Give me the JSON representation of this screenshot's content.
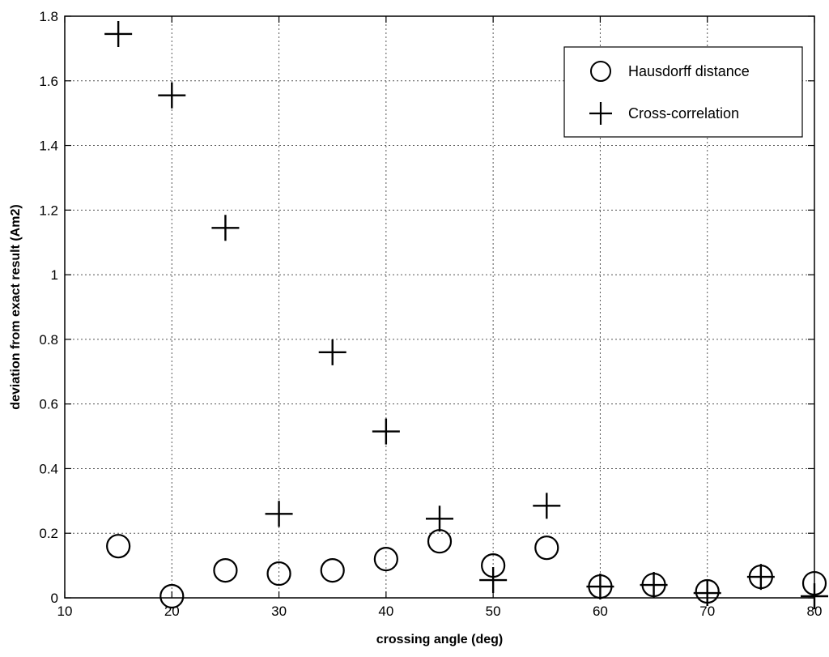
{
  "chart_data": {
    "type": "scatter",
    "title": "",
    "xlabel": "crossing angle (deg)",
    "ylabel": "deviation from exact result (Am2)",
    "xlim": [
      10,
      80
    ],
    "ylim": [
      0,
      1.8
    ],
    "xticks": [
      10,
      20,
      30,
      40,
      50,
      60,
      70,
      80
    ],
    "yticks": [
      0,
      0.2,
      0.4,
      0.6,
      0.8,
      1,
      1.2,
      1.4,
      1.6,
      1.8
    ],
    "xtick_labels": [
      "10",
      "20",
      "30",
      "40",
      "50",
      "60",
      "70",
      "80"
    ],
    "ytick_labels": [
      "0",
      "0.2",
      "0.4",
      "0.6",
      "0.8",
      "1",
      "1.2",
      "1.4",
      "1.6",
      "1.8"
    ],
    "grid": true,
    "legend_position": "top-right",
    "series": [
      {
        "name": "Hausdorff distance",
        "marker": "circle",
        "x": [
          15,
          20,
          25,
          30,
          35,
          40,
          45,
          50,
          55,
          60,
          65,
          70,
          75,
          80
        ],
        "y": [
          0.16,
          0.005,
          0.085,
          0.075,
          0.085,
          0.12,
          0.175,
          0.1,
          0.155,
          0.035,
          0.04,
          0.02,
          0.065,
          0.045
        ]
      },
      {
        "name": "Cross-correlation",
        "marker": "plus",
        "x": [
          15,
          20,
          25,
          30,
          35,
          40,
          45,
          50,
          55,
          60,
          65,
          70,
          75,
          80
        ],
        "y": [
          1.745,
          1.555,
          1.145,
          0.26,
          0.76,
          0.515,
          0.245,
          0.055,
          0.285,
          0.035,
          0.04,
          0.015,
          0.065,
          0.005
        ]
      }
    ]
  }
}
